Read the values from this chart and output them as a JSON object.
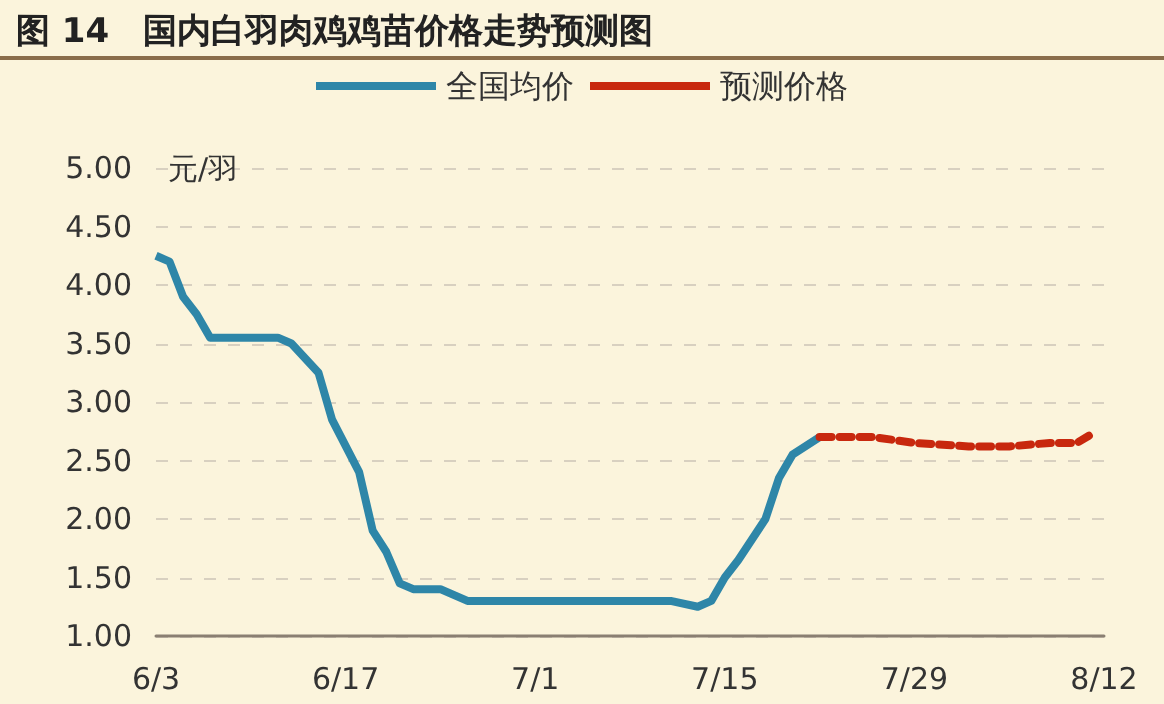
{
  "chart_data": {
    "type": "line",
    "title": "图 14　国内白羽肉鸡鸡苗价格走势预测图",
    "ylabel": "元/羽",
    "xlim": [
      "--06-03",
      "--08-12"
    ],
    "xticks": [
      {
        "value": "--06-03",
        "label": "6/3"
      },
      {
        "value": "--06-17",
        "label": "6/17"
      },
      {
        "value": "--07-01",
        "label": "7/1"
      },
      {
        "value": "--07-15",
        "label": "7/15"
      },
      {
        "value": "--07-29",
        "label": "7/29"
      },
      {
        "value": "--08-12",
        "label": "8/12"
      }
    ],
    "ylim": [
      1,
      5
    ],
    "yticks": [
      {
        "value": 1,
        "label": "1.00"
      },
      {
        "value": 1.5,
        "label": "1.50"
      },
      {
        "value": 2,
        "label": "2.00"
      },
      {
        "value": 2.5,
        "label": "2.50"
      },
      {
        "value": 3,
        "label": "3.00"
      },
      {
        "value": 3.5,
        "label": "3.50"
      },
      {
        "value": 4,
        "label": "4.00"
      },
      {
        "value": 4.5,
        "label": "4.50"
      },
      {
        "value": 5,
        "label": "5.00"
      }
    ],
    "grid": "y",
    "legend": "top",
    "marker": "none",
    "series": [
      {
        "name": "全国均价",
        "color": "#2e86a8",
        "line_style": "solid",
        "x": [
          "--06-03",
          "--06-04",
          "--06-05",
          "--06-06",
          "--06-07",
          "--06-12",
          "--06-13",
          "--06-15",
          "--06-16",
          "--06-18",
          "--06-19",
          "--06-20",
          "--06-21",
          "--06-22",
          "--06-24",
          "--06-26",
          "--07-11",
          "--07-13",
          "--07-14",
          "--07-15",
          "--07-16",
          "--07-18",
          "--07-19",
          "--07-20",
          "--07-22"
        ],
        "values": [
          4.25,
          4.2,
          3.9,
          3.75,
          3.55,
          3.55,
          3.5,
          3.25,
          2.85,
          2.4,
          1.9,
          1.72,
          1.45,
          1.4,
          1.4,
          1.3,
          1.3,
          1.25,
          1.3,
          1.5,
          1.65,
          2.0,
          2.35,
          2.55,
          2.7
        ]
      },
      {
        "name": "预测价格",
        "color": "#c8280e",
        "line_style": "dashed",
        "x": [
          "--07-22",
          "--07-26",
          "--07-29",
          "--08-02",
          "--08-05",
          "--08-08",
          "--08-10",
          "--08-11"
        ],
        "values": [
          2.7,
          2.7,
          2.65,
          2.62,
          2.62,
          2.65,
          2.65,
          2.72
        ]
      }
    ]
  }
}
